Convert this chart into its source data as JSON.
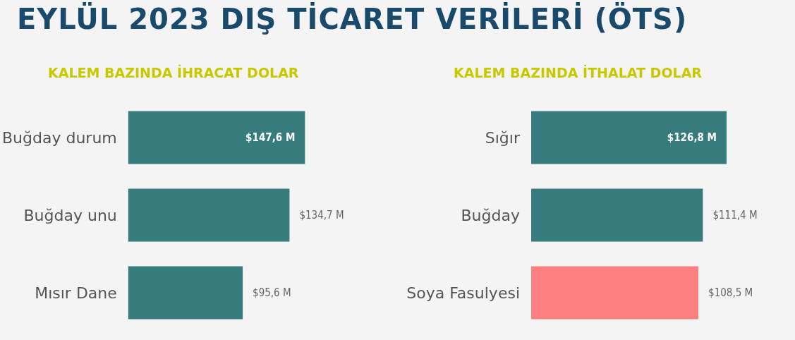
{
  "chart_data": [
    {
      "type": "bar",
      "orientation": "horizontal",
      "title": "EYLÜL 2023 DIŞ TİCARET VERİLERİ (ÖTS)",
      "subtitle": "KALEM BAZINDA İHRACAT DOLAR",
      "categories": [
        "Buğday durum",
        "Buğday unu",
        "Mısır Dane"
      ],
      "values": [
        147.6,
        134.7,
        95.6
      ],
      "value_labels": [
        "$147,6 M",
        "$134,7 M",
        "$95,6 M"
      ],
      "color": "#367b7d",
      "tick_labels": "y"
    },
    {
      "type": "bar",
      "orientation": "horizontal",
      "subtitle": "KALEM BAZINDA İTHALAT DOLAR",
      "categories": [
        "Sığır",
        "Buğday",
        "Soya Fasulyesi"
      ],
      "values": [
        126.8,
        111.4,
        108.5
      ],
      "value_labels": [
        "$126,8 M",
        "$111,4 M",
        "$108,5 M"
      ],
      "colors": [
        "#367b7d",
        "#367b7d",
        "#fd7f7f"
      ],
      "tick_labels": "y"
    }
  ]
}
